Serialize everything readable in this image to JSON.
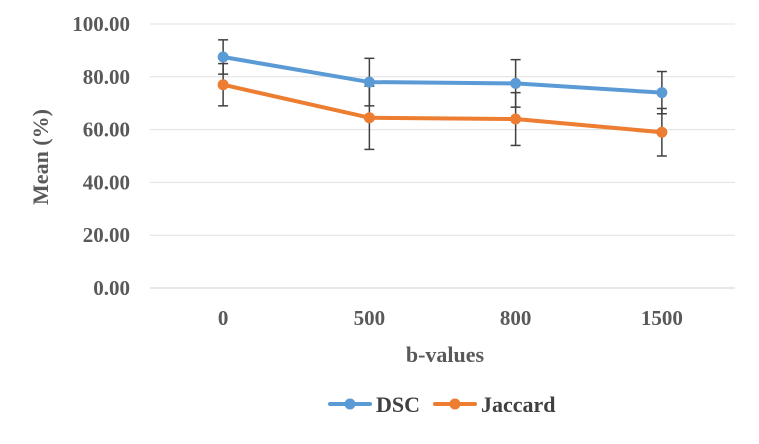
{
  "chart_data": {
    "type": "line",
    "title": "",
    "xlabel": "b-values",
    "ylabel": "Mean (%)",
    "categories": [
      "0",
      "500",
      "800",
      "1500"
    ],
    "ylim": [
      0,
      100
    ],
    "yticks": [
      0,
      20,
      40,
      60,
      80,
      100
    ],
    "ytick_labels": [
      "0.00",
      "20.00",
      "40.00",
      "60.00",
      "80.00",
      "100.00"
    ],
    "grid": true,
    "legend_position": "bottom",
    "series": [
      {
        "name": "DSC",
        "color": "#5B9BD5",
        "values": [
          87.5,
          78.0,
          77.5,
          74.0
        ],
        "error": [
          6.5,
          9.0,
          9.0,
          8.0
        ]
      },
      {
        "name": "Jaccard",
        "color": "#ED7D31",
        "values": [
          77.0,
          64.5,
          64.0,
          59.0
        ],
        "error": [
          8.0,
          12.0,
          10.0,
          9.0
        ]
      }
    ]
  }
}
